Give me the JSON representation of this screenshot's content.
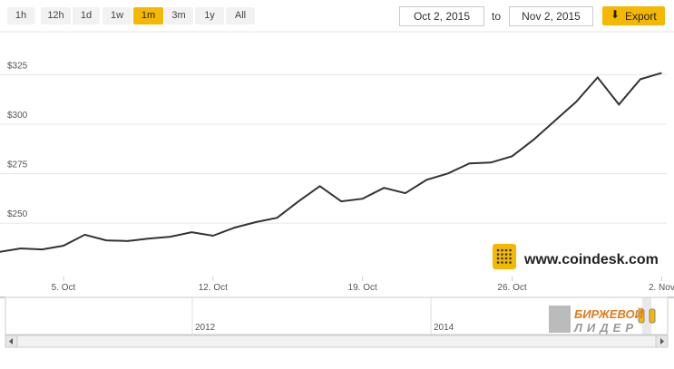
{
  "controls": {
    "ranges": [
      "1h",
      "12h",
      "1d",
      "1w",
      "1m",
      "3m",
      "1y",
      "All"
    ],
    "active_range": 4,
    "from": "Oct 2, 2015",
    "to_word": "to",
    "to": "Nov 2, 2015",
    "export": "Export"
  },
  "chart_data": {
    "type": "line",
    "categories": [
      null,
      null,
      null,
      "5. Oct",
      null,
      null,
      null,
      null,
      null,
      null,
      "12. Oct",
      null,
      null,
      null,
      null,
      null,
      null,
      "19. Oct",
      null,
      null,
      null,
      null,
      null,
      null,
      "26. Oct",
      null,
      null,
      null,
      null,
      null,
      null,
      "2. Nov"
    ],
    "series": [
      {
        "color": "#333333",
        "values": [
          235.4,
          237.2,
          236.7,
          238.6,
          244.1,
          241.3,
          240.9,
          242.2,
          243.1,
          245.4,
          243.6,
          247.7,
          250.5,
          252.7,
          261.0,
          268.7,
          261.0,
          262.3,
          267.8,
          265.1,
          271.9,
          275.1,
          280.2,
          280.6,
          283.8,
          292.1,
          301.7,
          311.3,
          323.6,
          309.9,
          322.7,
          325.9
        ]
      }
    ],
    "ylim": [
      223,
      349
    ],
    "yticks": [
      {
        "value": 250,
        "label": "$250"
      },
      {
        "value": 275,
        "label": "$275"
      },
      {
        "value": 300,
        "label": "$300"
      },
      {
        "value": 325,
        "label": "$325"
      }
    ],
    "grid": true
  },
  "watermark": "www.coindesk.com",
  "navigator": {
    "labels": [
      "2012",
      "2014"
    ]
  },
  "logo": {
    "line1": "БИРЖЕВОЙ",
    "line2": "ЛИДЕР"
  }
}
